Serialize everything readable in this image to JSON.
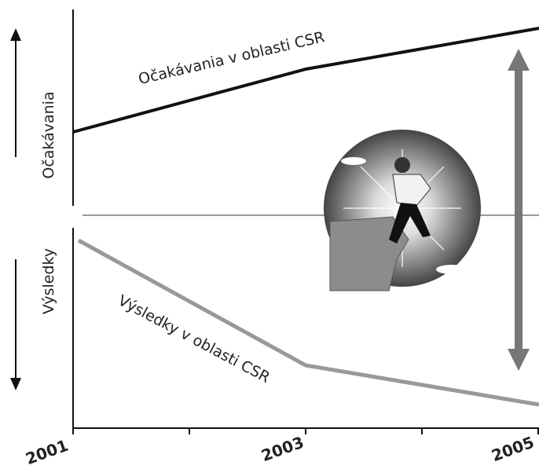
{
  "axis_labels": {
    "upper": "Očakávania",
    "lower": "Výsledky"
  },
  "curves": {
    "expectations": "Očakávania v oblasti CSR",
    "results": "Výsledky v oblasti CSR"
  },
  "years": [
    "2001",
    "2003",
    "2005"
  ]
}
